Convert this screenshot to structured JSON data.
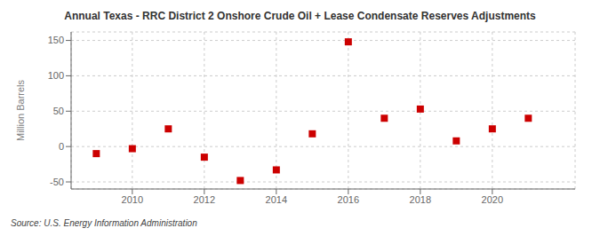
{
  "chart_data": {
    "type": "scatter",
    "title": "Annual Texas - RRC District 2 Onshore Crude Oil + Lease Condensate Reserves Adjustments",
    "ylabel": "Million Barrels",
    "annotations": [
      "Source: U.S. Energy Information Administration"
    ],
    "x": [
      2009,
      2010,
      2011,
      2012,
      2013,
      2014,
      2015,
      2016,
      2017,
      2018,
      2019,
      2020,
      2021
    ],
    "values": [
      -10.0,
      -3.0,
      25.0,
      -15.0,
      -48.0,
      -33.0,
      18.0,
      148.0,
      40.0,
      53.0,
      8.0,
      25.0,
      40.0
    ],
    "color": "#cc0000",
    "marker": "square",
    "xlim": [
      2008.3,
      2022.3
    ],
    "xticks": [
      2010,
      2012,
      2014,
      2016,
      2018,
      2020
    ],
    "ylim": [
      -60,
      162
    ],
    "yticks": [
      -50,
      0,
      50,
      100,
      150
    ],
    "grid": true
  }
}
